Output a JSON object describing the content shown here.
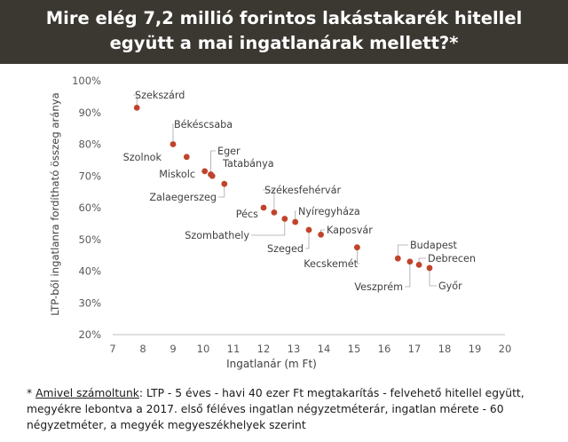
{
  "header": {
    "title_line1": "Mire elég 7,2 millió forintos lakástakarék hitellel",
    "title_line2": "együtt a mai ingatlanárak mellett?*"
  },
  "chart_data": {
    "type": "scatter",
    "xlabel": "Ingatlanár (m Ft)",
    "ylabel": "LTP-ből ingatlanra fordítható összeg aránya",
    "xlim": [
      7,
      20
    ],
    "ylim": [
      20,
      100
    ],
    "x_ticks": [
      "7",
      "8",
      "9",
      "10",
      "11",
      "12",
      "13",
      "14",
      "15",
      "16",
      "17",
      "18",
      "19",
      "20"
    ],
    "y_ticks": [
      "20%",
      "30%",
      "40%",
      "50%",
      "60%",
      "70%",
      "80%",
      "90%",
      "100%"
    ],
    "grid": false,
    "legend": "none",
    "marker_color": "#c0442b",
    "points": [
      {
        "label": "Szekszárd",
        "x": 7.8,
        "y": 91.5
      },
      {
        "label": "Békéscsaba",
        "x": 9.0,
        "y": 80.0
      },
      {
        "label": "Szolnok",
        "x": 9.45,
        "y": 76.0
      },
      {
        "label": "Miskolc",
        "x": 10.05,
        "y": 71.5
      },
      {
        "label": "Eger",
        "x": 10.25,
        "y": 70.5
      },
      {
        "label": "Tatabánya",
        "x": 10.3,
        "y": 70.0
      },
      {
        "label": "Zalaegerszeg",
        "x": 10.7,
        "y": 67.5
      },
      {
        "label": "Pécs",
        "x": 12.0,
        "y": 60.0
      },
      {
        "label": "Székesfehérvár",
        "x": 12.35,
        "y": 58.5
      },
      {
        "label": "Szombathely",
        "x": 12.7,
        "y": 56.5
      },
      {
        "label": "Nyíregyháza",
        "x": 13.05,
        "y": 55.5
      },
      {
        "label": "Szeged",
        "x": 13.5,
        "y": 53.0
      },
      {
        "label": "Kaposvár",
        "x": 13.9,
        "y": 51.5
      },
      {
        "label": "Kecskemét",
        "x": 15.1,
        "y": 47.5
      },
      {
        "label": "Budapest",
        "x": 16.45,
        "y": 44.0
      },
      {
        "label": "Veszprém",
        "x": 16.85,
        "y": 43.0
      },
      {
        "label": "Debrecen",
        "x": 17.15,
        "y": 42.0
      },
      {
        "label": "Győr",
        "x": 17.5,
        "y": 41.0
      }
    ]
  },
  "footnote": {
    "star": "* ",
    "label": "Amivel számoltunk",
    "text": ": LTP - 5 éves - havi 40 ezer Ft megtakarítás - felvehető hitellel együtt, megyékre lebontva a 2017. első féléves ingatlan négyzetméterár, ingatlan mérete - 60 négyzetméter, a megyék megyeszékhelyek szerint"
  }
}
